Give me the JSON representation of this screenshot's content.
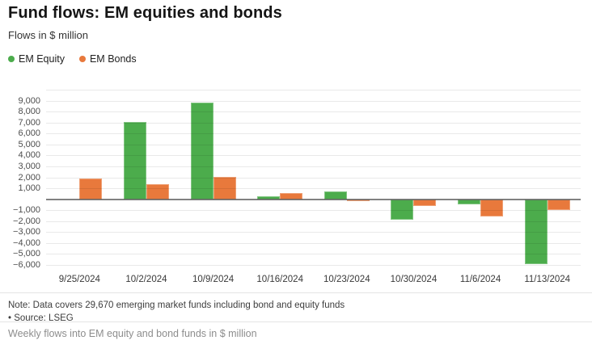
{
  "footer": {
    "note": "Note: Data covers 29,670 emerging market funds including bond and equity funds",
    "source": "• Source: LSEG",
    "caption": "Weekly flows into EM equity and bond funds in $ million"
  },
  "colors": {
    "equity_green": "#4cac4c",
    "bonds_orange": "#e8793c",
    "zero_line": "#787878",
    "gridline": "#e9e9e9"
  },
  "chart_data": {
    "type": "bar",
    "title": "Fund flows: EM equities and bonds",
    "subtitle": "Flows in $ million",
    "categories": [
      "9/25/2024",
      "10/2/2024",
      "10/9/2024",
      "10/16/2024",
      "10/23/2024",
      "10/30/2024",
      "11/6/2024",
      "11/13/2024"
    ],
    "series": [
      {
        "name": "EM Equity",
        "color": "#4cac4c",
        "values": [
          0,
          7050,
          8850,
          300,
          700,
          -1900,
          -500,
          -5900
        ]
      },
      {
        "name": "EM Bonds",
        "color": "#e8793c",
        "values": [
          1900,
          1400,
          2050,
          550,
          -150,
          -600,
          -1600,
          -950
        ]
      }
    ],
    "xlabel": "",
    "ylabel": "",
    "ylim": [
      -6000,
      10000
    ],
    "ytick_step": 1000,
    "yticks": [
      {
        "value": 9000,
        "label": "9,000"
      },
      {
        "value": 8000,
        "label": "8,000"
      },
      {
        "value": 7000,
        "label": "7,000"
      },
      {
        "value": 6000,
        "label": "6,000"
      },
      {
        "value": 5000,
        "label": "5,000"
      },
      {
        "value": 4000,
        "label": "4,000"
      },
      {
        "value": 3000,
        "label": "3,000"
      },
      {
        "value": 2000,
        "label": "2,000"
      },
      {
        "value": 1000,
        "label": "1,000"
      },
      {
        "value": -1000,
        "label": "−1,000"
      },
      {
        "value": -2000,
        "label": "−2,000"
      },
      {
        "value": -3000,
        "label": "−3,000"
      },
      {
        "value": -4000,
        "label": "−4,000"
      },
      {
        "value": -5000,
        "label": "−5,000"
      },
      {
        "value": -6000,
        "label": "−6,000"
      }
    ],
    "grid": true,
    "legend_position": "top-left"
  }
}
